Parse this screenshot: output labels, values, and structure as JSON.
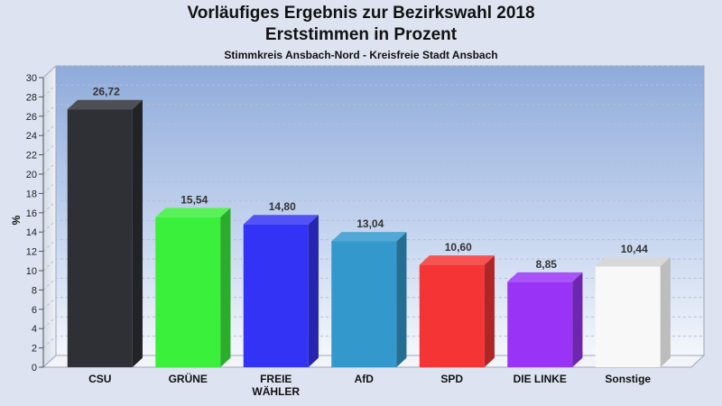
{
  "chart_data": {
    "type": "bar",
    "title": "Vorläufiges Ergebnis zur Bezirkswahl 2018",
    "title_line2": "Erststimmen in Prozent",
    "subtitle": "Stimmkreis Ansbach-Nord - Kreisfreie Stadt Ansbach",
    "ylabel": "%",
    "xlabel": "",
    "ylim": [
      0,
      30
    ],
    "yticks": [
      0,
      2,
      4,
      6,
      8,
      10,
      12,
      14,
      16,
      18,
      20,
      22,
      24,
      26,
      28,
      30
    ],
    "grid": true,
    "categories": [
      [
        "CSU"
      ],
      [
        "GRÜNE"
      ],
      [
        "FREIE",
        "WÄHLER"
      ],
      [
        "AfD"
      ],
      [
        "SPD"
      ],
      [
        "DIE LINKE"
      ],
      [
        "Sonstige"
      ]
    ],
    "values": [
      26.72,
      15.54,
      14.8,
      13.04,
      10.6,
      8.85,
      10.44
    ],
    "value_labels": [
      "26,72",
      "15,54",
      "14,80",
      "13,04",
      "10,60",
      "8,85",
      "10,44"
    ],
    "colors": [
      "#2f3036",
      "#3bf03b",
      "#3333f5",
      "#3399cc",
      "#f53535",
      "#9933f5",
      "#f8f8f8"
    ]
  }
}
